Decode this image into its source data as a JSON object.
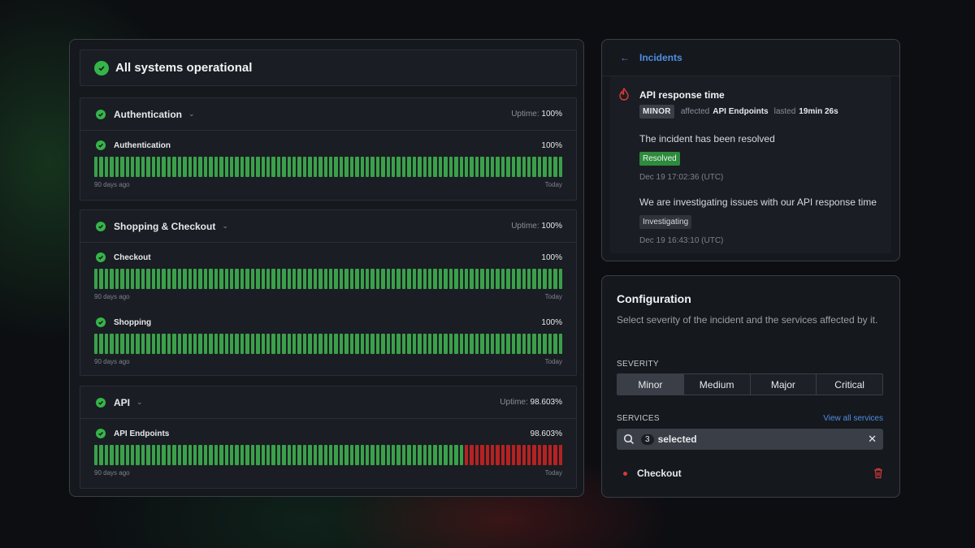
{
  "status": {
    "overall": "All systems operational",
    "uptime_label": "Uptime:",
    "groups": [
      {
        "name": "Authentication",
        "uptime": "100%",
        "services": [
          {
            "name": "Authentication",
            "percent": "100%",
            "start_label": "90 days ago",
            "end_label": "Today",
            "bars_total": 90,
            "down_days": 0
          }
        ]
      },
      {
        "name": "Shopping & Checkout",
        "uptime": "100%",
        "services": [
          {
            "name": "Checkout",
            "percent": "100%",
            "start_label": "90 days ago",
            "end_label": "Today",
            "bars_total": 90,
            "down_days": 0
          },
          {
            "name": "Shopping",
            "percent": "100%",
            "start_label": "90 days ago",
            "end_label": "Today",
            "bars_total": 90,
            "down_days": 0
          }
        ]
      },
      {
        "name": "API",
        "uptime": "98.603%",
        "services": [
          {
            "name": "API Endpoints",
            "percent": "98.603%",
            "start_label": "90 days ago",
            "end_label": "Today",
            "bars_total": 90,
            "down_days": 19
          }
        ]
      }
    ]
  },
  "incidents": {
    "title": "Incidents",
    "incident": {
      "name": "API response time",
      "severity": "MINOR",
      "affected_label": "affected",
      "affected": "API Endpoints",
      "lasted_label": "lasted",
      "duration": "19min 26s",
      "updates": [
        {
          "text": "The incident has been resolved",
          "status": "Resolved",
          "time": "Dec 19 17:02:36 (UTC)"
        },
        {
          "text": "We are investigating issues with our API response time",
          "status": "Investigating",
          "time": "Dec 19 16:43:10 (UTC)"
        }
      ]
    }
  },
  "configuration": {
    "title": "Configuration",
    "description": "Select severity of the incident and the services affected by it.",
    "severity_label": "SEVERITY",
    "severity_options": [
      "Minor",
      "Medium",
      "Major",
      "Critical"
    ],
    "severity_selected": "Minor",
    "services_label": "SERVICES",
    "view_all": "View all services",
    "selected_count": "3",
    "selected_text": "selected",
    "service_rows": [
      "Checkout"
    ]
  },
  "colors": {
    "up": "#3aa14a",
    "down": "#b52222",
    "accent": "#4f8fe6",
    "ok": "#35b44a"
  }
}
